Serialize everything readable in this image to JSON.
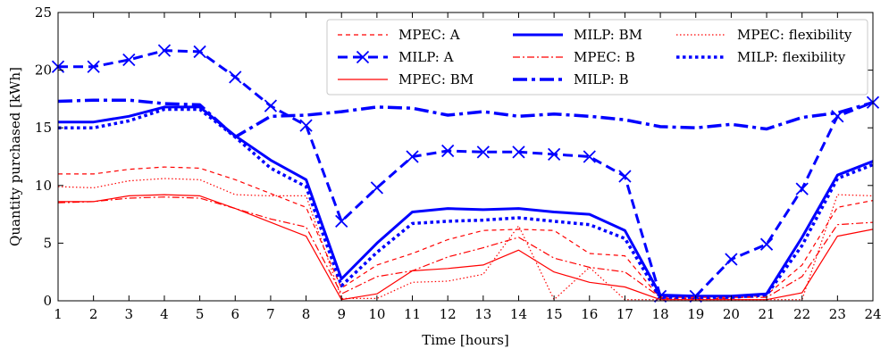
{
  "chart_data": {
    "type": "line",
    "title": "",
    "xlabel": "Time [hours]",
    "ylabel": "Quantity purchased [kWh]",
    "xlim": [
      1,
      24
    ],
    "ylim": [
      0,
      25
    ],
    "x": [
      1,
      2,
      3,
      4,
      5,
      6,
      7,
      8,
      9,
      10,
      11,
      12,
      13,
      14,
      15,
      16,
      17,
      18,
      19,
      20,
      21,
      22,
      23,
      24
    ],
    "xticks": [
      "1",
      "2",
      "3",
      "4",
      "5",
      "6",
      "7",
      "8",
      "9",
      "10",
      "11",
      "12",
      "13",
      "14",
      "15",
      "16",
      "17",
      "18",
      "19",
      "20",
      "21",
      "22",
      "23",
      "24"
    ],
    "yticks": [
      "0",
      "5",
      "10",
      "15",
      "20",
      "25"
    ],
    "grid": false,
    "legend_position": "top-right",
    "series": [
      {
        "name": "MPEC: A",
        "color": "#ff0000",
        "style": "dashed-thin",
        "values": [
          11.0,
          11.0,
          11.4,
          11.6,
          11.5,
          10.5,
          9.3,
          8.1,
          1.1,
          3.1,
          4.1,
          5.3,
          6.1,
          6.2,
          6.1,
          4.1,
          3.9,
          0.2,
          0.2,
          0.2,
          0.5,
          3.1,
          8.1,
          8.7
        ]
      },
      {
        "name": "MILP: A",
        "color": "#0000ff",
        "style": "dashed-x",
        "values": [
          20.3,
          20.3,
          20.9,
          21.7,
          21.6,
          19.4,
          16.9,
          15.2,
          6.9,
          9.8,
          12.5,
          13.0,
          12.9,
          12.9,
          12.7,
          12.5,
          10.8,
          0.4,
          0.4,
          3.6,
          4.9,
          9.7,
          16.0,
          17.2
        ]
      },
      {
        "name": "MPEC: BM",
        "color": "#ff0000",
        "style": "solid-thin",
        "values": [
          8.6,
          8.6,
          9.1,
          9.2,
          9.1,
          8.0,
          6.8,
          5.6,
          0.1,
          0.6,
          2.6,
          2.8,
          3.1,
          4.4,
          2.5,
          1.6,
          1.2,
          0.1,
          0.1,
          0.1,
          0.1,
          0.7,
          5.6,
          6.2
        ]
      },
      {
        "name": "MILP: BM",
        "color": "#0000ff",
        "style": "solid-thick",
        "values": [
          15.5,
          15.5,
          16.0,
          16.8,
          16.8,
          14.3,
          12.2,
          10.5,
          1.9,
          5.0,
          7.7,
          8.0,
          7.9,
          8.0,
          7.7,
          7.5,
          6.1,
          0.5,
          0.4,
          0.4,
          0.6,
          5.5,
          10.9,
          12.1
        ]
      },
      {
        "name": "MPEC: B",
        "color": "#ff0000",
        "style": "dashdot-thin",
        "values": [
          8.5,
          8.6,
          8.9,
          9.0,
          8.9,
          8.0,
          7.1,
          6.4,
          0.6,
          2.1,
          2.6,
          3.8,
          4.6,
          5.5,
          3.7,
          2.9,
          2.5,
          0.3,
          0.3,
          0.3,
          0.3,
          2.1,
          6.6,
          6.8
        ]
      },
      {
        "name": "MILP: B",
        "color": "#0000ff",
        "style": "dashdot-thick",
        "values": [
          17.3,
          17.4,
          17.4,
          17.1,
          17.0,
          14.2,
          16.0,
          16.1,
          16.4,
          16.8,
          16.7,
          16.1,
          16.4,
          16.0,
          16.2,
          16.0,
          15.7,
          15.1,
          15.0,
          15.3,
          14.9,
          15.9,
          16.3,
          17.2
        ]
      },
      {
        "name": "MPEC: flexibility",
        "color": "#ff0000",
        "style": "dotted-thin",
        "values": [
          9.9,
          9.8,
          10.4,
          10.6,
          10.5,
          9.2,
          9.1,
          9.1,
          0.2,
          0.2,
          1.6,
          1.7,
          2.3,
          6.5,
          0.1,
          2.9,
          0.1,
          0.1,
          0.1,
          0.1,
          0.1,
          0.1,
          9.2,
          9.1
        ]
      },
      {
        "name": "MILP: flexibility",
        "color": "#0000ff",
        "style": "dotted-thick",
        "values": [
          15.0,
          15.0,
          15.6,
          16.6,
          16.6,
          14.2,
          11.5,
          9.9,
          1.3,
          4.2,
          6.7,
          6.9,
          7.0,
          7.2,
          6.9,
          6.6,
          5.4,
          0.3,
          0.3,
          0.3,
          0.5,
          4.8,
          10.6,
          11.8
        ]
      }
    ]
  }
}
